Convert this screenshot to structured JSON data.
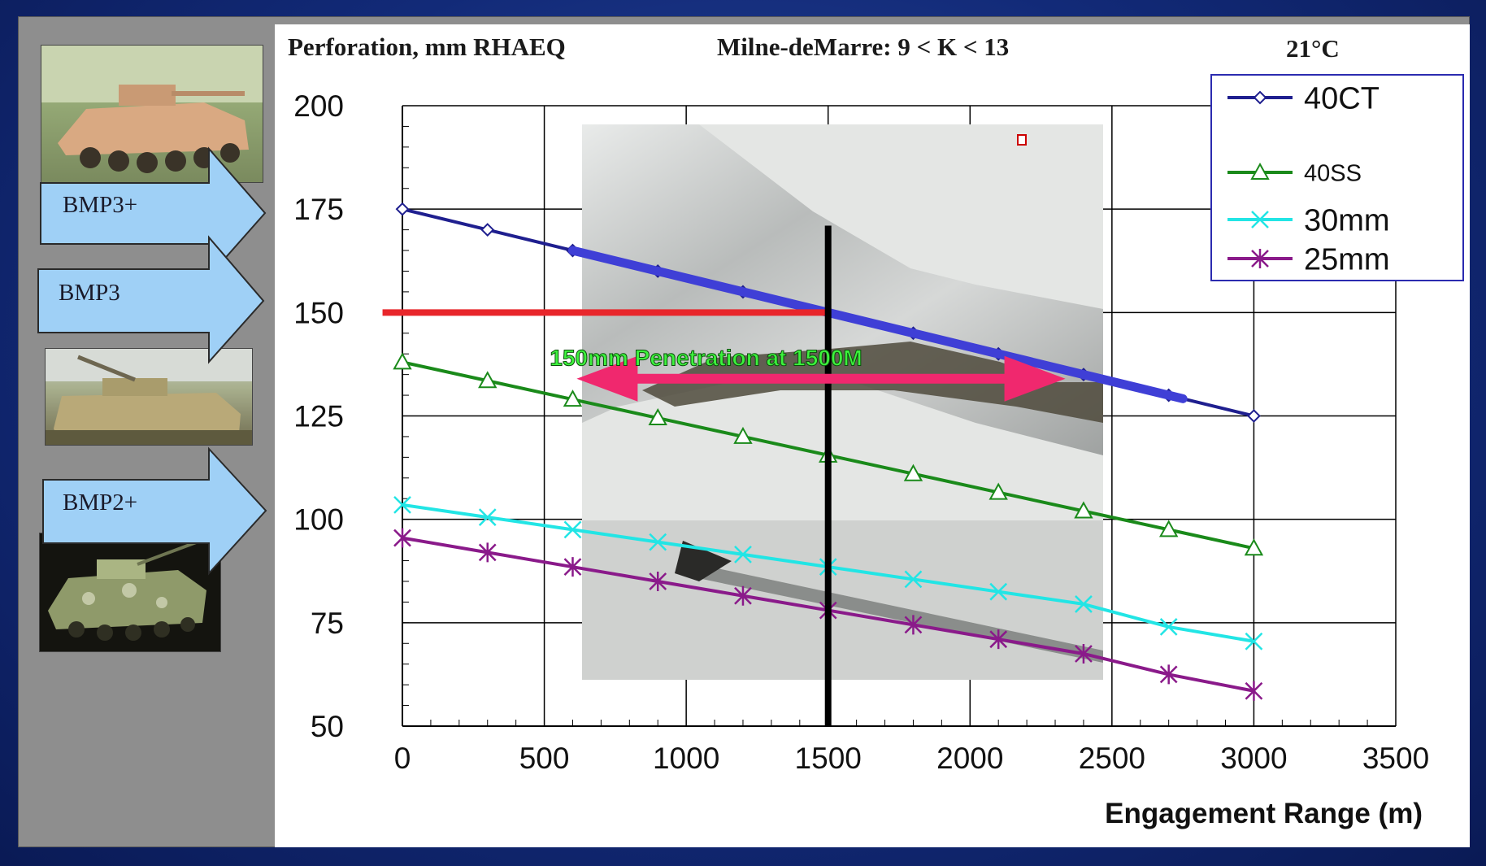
{
  "slide": {
    "frame_color": "#8e8e8e",
    "background_color": "#1b3a8c",
    "vehicle_labels": [
      "BMP3+",
      "BMP3",
      "BMP2+"
    ]
  },
  "header": {
    "title": "Perforation, mm RHAEQ",
    "criterion": "Milne-deMarre:  9 < K < 13",
    "temperature": "21°C"
  },
  "chart_data": {
    "type": "line",
    "title": "Perforation, mm RHAEQ",
    "subtitle": "Milne-deMarre:  9 < K < 13",
    "xlabel": "Engagement Range (m)",
    "ylabel": "",
    "xlim": [
      0,
      3500
    ],
    "ylim": [
      50,
      200
    ],
    "x_ticks": [
      "0",
      "500",
      "1000",
      "1500",
      "2000",
      "2500",
      "3000",
      "3500"
    ],
    "y_ticks": [
      "50",
      "75",
      "100",
      "125",
      "150",
      "175",
      "200"
    ],
    "grid": true,
    "legend_position": "top-right",
    "x": [
      0,
      300,
      600,
      900,
      1200,
      1500,
      1800,
      2100,
      2400,
      2700,
      3000
    ],
    "series": [
      {
        "name": "40CT",
        "color": "#1f1f8f",
        "marker": "diamond",
        "values": [
          175,
          170,
          165,
          160,
          155,
          150,
          145,
          140,
          135,
          130,
          125
        ]
      },
      {
        "name": "40SS",
        "color": "#1a8a1a",
        "marker": "triangle",
        "values": [
          138,
          133.5,
          129,
          124.5,
          120,
          115.5,
          111,
          106.5,
          102,
          97.5,
          93
        ]
      },
      {
        "name": "30mm",
        "color": "#22e5e5",
        "marker": "x",
        "values": [
          103.5,
          100.5,
          97.5,
          94.5,
          91.5,
          88.5,
          85.5,
          82.5,
          79.5,
          74,
          70.5
        ]
      },
      {
        "name": "25mm",
        "color": "#8a1a8a",
        "marker": "asterisk",
        "values": [
          95.5,
          92,
          88.5,
          85,
          81.5,
          78,
          74.5,
          71,
          67.5,
          62.5,
          58.5
        ]
      }
    ],
    "annotations": {
      "text": "150mm Penetration at 1500M",
      "hline_value": 150,
      "vline_x": 1500,
      "hline_color": "#e8262b",
      "vline_color": "#000000",
      "arrow_color": "#f0286e",
      "arrow_x_range": [
        700,
        2250
      ],
      "arrow_y": 134,
      "highlight_segment_x": [
        600,
        2750
      ],
      "highlight_color": "#3f3fd6"
    }
  }
}
